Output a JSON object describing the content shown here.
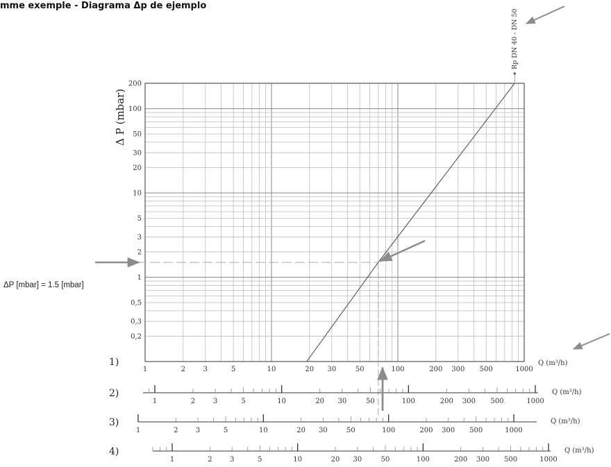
{
  "title": "mme exemple - Diagrama Δp de ejemplo",
  "chart_data": {
    "type": "line",
    "scale": "log-log",
    "ylabel": "Δ P (mbar)",
    "xlabel": "Q (m³/h)",
    "xlim": [
      1,
      1000
    ],
    "ylim": [
      0.1,
      200
    ],
    "x_ticks": [
      1,
      2,
      3,
      5,
      10,
      20,
      30,
      50,
      100,
      200,
      300,
      500,
      1000
    ],
    "x_tick_labels": [
      "1",
      "2",
      "3",
      "5",
      "10",
      "20",
      "30",
      "50",
      "100",
      "200",
      "300",
      "500",
      "1000"
    ],
    "y_ticks": [
      0.2,
      0.3,
      0.5,
      1,
      2,
      3,
      5,
      10,
      20,
      30,
      50,
      100,
      200
    ],
    "y_tick_labels": [
      "0,2",
      "0,3",
      "0,5",
      "1",
      "2",
      "3",
      "5",
      "10",
      "20",
      "30",
      "50",
      "100",
      "200"
    ],
    "grid": true,
    "series": [
      {
        "name": "Rp DN 40 - DN 50",
        "x": [
          19,
          70,
          840
        ],
        "y": [
          0.1,
          1.5,
          200
        ]
      }
    ],
    "example": {
      "label": "ΔP [mbar] = 1.5 [mbar]",
      "dp": 1.5,
      "q": 70
    },
    "flow_scales": [
      {
        "label": "1)",
        "unit": "Q (m³/h)",
        "tick_labels": [
          "1",
          "2",
          "3",
          "5",
          "10",
          "20",
          "30",
          "50",
          "100",
          "200",
          "300",
          "500",
          "1000"
        ]
      },
      {
        "label": "2)",
        "unit": "Q (m³/h)",
        "tick_labels": [
          "1",
          "2",
          "3",
          "5",
          "10",
          "20",
          "30",
          "50",
          "100",
          "200",
          "300",
          "500",
          "1000"
        ]
      },
      {
        "label": "3)",
        "unit": "Q (m³/h)",
        "tick_labels": [
          "1",
          "2",
          "3",
          "5",
          "10",
          "20",
          "30",
          "50",
          "100",
          "200",
          "300",
          "500",
          "1000"
        ]
      },
      {
        "label": "4)",
        "unit": "Q (m³/h)",
        "tick_labels": [
          "1",
          "2",
          "3",
          "5",
          "10",
          "20",
          "30",
          "50",
          "100",
          "200",
          "300",
          "500",
          "1000"
        ]
      }
    ]
  }
}
